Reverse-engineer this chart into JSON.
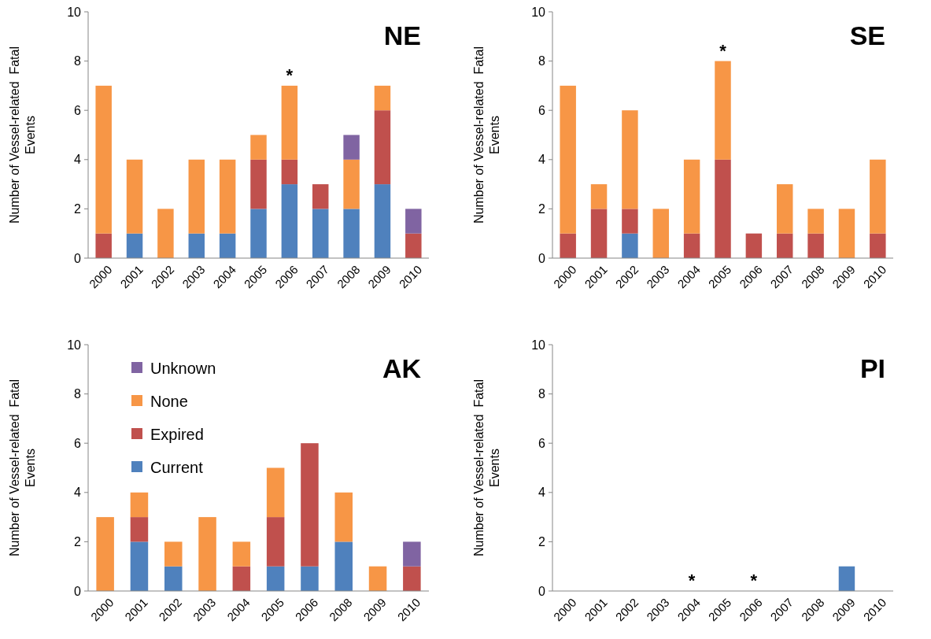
{
  "chart_data": [
    {
      "type": "bar",
      "stacked": true,
      "title": "NE",
      "ylabel": "Number of Vessel-related  Fatal Events",
      "categories": [
        "2000",
        "2001",
        "2002",
        "2003",
        "2004",
        "2005",
        "2006",
        "2007",
        "2008",
        "2009",
        "2010"
      ],
      "ylim": [
        0,
        10
      ],
      "yticks": [
        0,
        2,
        4,
        6,
        8,
        10
      ],
      "grid": false,
      "legend": false,
      "annotations": [
        {
          "text": "*",
          "x": "2006",
          "y": 7
        }
      ],
      "series": [
        {
          "color": "#4f81bd",
          "values": [
            0,
            1,
            0,
            1,
            1,
            2,
            3,
            2,
            2,
            3,
            0
          ]
        },
        {
          "color": "#c0504d",
          "values": [
            1,
            0,
            0,
            0,
            0,
            2,
            1,
            1,
            0,
            3,
            1
          ]
        },
        {
          "color": "#f79646",
          "values": [
            6,
            3,
            2,
            3,
            3,
            1,
            3,
            0,
            2,
            1,
            0
          ]
        },
        {
          "color": "#8064a2",
          "values": [
            0,
            0,
            0,
            0,
            0,
            0,
            0,
            0,
            1,
            0,
            1
          ]
        }
      ]
    },
    {
      "type": "bar",
      "stacked": true,
      "title": "SE",
      "ylabel": "Number of Vessel-related  Fatal Events",
      "categories": [
        "2000",
        "2001",
        "2002",
        "2003",
        "2004",
        "2005",
        "2006",
        "2007",
        "2008",
        "2009",
        "2010"
      ],
      "ylim": [
        0,
        10
      ],
      "yticks": [
        0,
        2,
        4,
        6,
        8,
        10
      ],
      "grid": false,
      "legend": false,
      "annotations": [
        {
          "text": "*",
          "x": "2005",
          "y": 8
        }
      ],
      "series": [
        {
          "color": "#4f81bd",
          "values": [
            0,
            0,
            1,
            0,
            0,
            0,
            0,
            0,
            0,
            0,
            0
          ]
        },
        {
          "color": "#c0504d",
          "values": [
            1,
            2,
            1,
            0,
            1,
            4,
            1,
            1,
            1,
            0,
            1
          ]
        },
        {
          "color": "#f79646",
          "values": [
            6,
            1,
            4,
            2,
            3,
            4,
            0,
            2,
            1,
            2,
            3
          ]
        }
      ]
    },
    {
      "type": "bar",
      "stacked": true,
      "title": "AK",
      "ylabel": "Number of Vessel-related  Fatal Events",
      "categories": [
        "2000",
        "2001",
        "2002",
        "2003",
        "2004",
        "2005",
        "2006",
        "2008",
        "2009",
        "2010"
      ],
      "ylim": [
        0,
        10
      ],
      "yticks": [
        0,
        2,
        4,
        6,
        8,
        10
      ],
      "grid": false,
      "legend": "top left",
      "series": [
        {
          "name": "Current",
          "color": "#4f81bd",
          "values": [
            0,
            2,
            1,
            0,
            0,
            1,
            1,
            2,
            0,
            0
          ]
        },
        {
          "name": "Expired",
          "color": "#c0504d",
          "values": [
            0,
            1,
            0,
            0,
            1,
            2,
            5,
            0,
            0,
            1
          ]
        },
        {
          "name": "None",
          "color": "#f79646",
          "values": [
            3,
            1,
            1,
            3,
            1,
            2,
            0,
            2,
            1,
            0
          ]
        },
        {
          "name": "Unknown",
          "color": "#8064a2",
          "values": [
            0,
            0,
            0,
            0,
            0,
            0,
            0,
            0,
            0,
            1
          ]
        }
      ]
    },
    {
      "type": "bar",
      "stacked": true,
      "title": "PI",
      "ylabel": "Number of Vessel-related  Fatal Events",
      "categories": [
        "2000",
        "2001",
        "2002",
        "2003",
        "2004",
        "2005",
        "2006",
        "2007",
        "2008",
        "2009",
        "2010"
      ],
      "ylim": [
        0,
        10
      ],
      "yticks": [
        0,
        2,
        4,
        6,
        8,
        10
      ],
      "grid": false,
      "legend": false,
      "annotations": [
        {
          "text": "*",
          "x": "2004",
          "y": 0
        },
        {
          "text": "*",
          "x": "2006",
          "y": 0
        }
      ],
      "series": [
        {
          "color": "#4f81bd",
          "values": [
            0,
            0,
            0,
            0,
            0,
            0,
            0,
            0,
            0,
            1,
            0
          ]
        }
      ]
    }
  ]
}
